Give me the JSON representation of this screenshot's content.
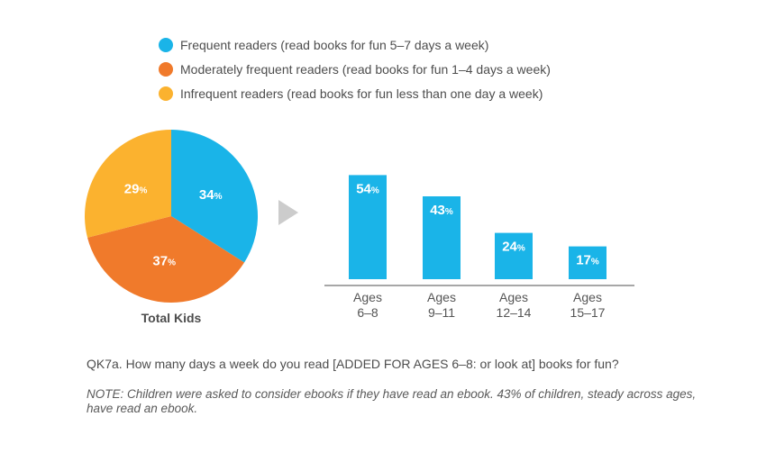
{
  "legend": [
    {
      "label": "Frequent readers (read books for fun 5–7 days a week)",
      "color": "#1ab4e8"
    },
    {
      "label": "Moderately frequent readers (read books for fun 1–4 days a week)",
      "color": "#f07a2b"
    },
    {
      "label": "Infrequent readers (read books for fun less than one day a week)",
      "color": "#fbb22f"
    }
  ],
  "chart_data": [
    {
      "type": "pie",
      "title": "Total Kids",
      "categories": [
        "Frequent readers",
        "Moderately frequent readers",
        "Infrequent readers"
      ],
      "values": [
        34,
        37,
        29
      ],
      "value_labels": [
        "34",
        "37",
        "29"
      ],
      "unit": "%",
      "colors": [
        "#1ab4e8",
        "#f07a2b",
        "#fbb22f"
      ]
    },
    {
      "type": "bar",
      "series_color": "#1ab4e8",
      "categories": [
        {
          "line1": "Ages",
          "line2": "6–8"
        },
        {
          "line1": "Ages",
          "line2": "9–11"
        },
        {
          "line1": "Ages",
          "line2": "12–14"
        },
        {
          "line1": "Ages",
          "line2": "15–17"
        }
      ],
      "values": [
        54,
        43,
        24,
        17
      ],
      "value_labels": [
        "54",
        "43",
        "24",
        "17"
      ],
      "unit": "%",
      "ylim": [
        0,
        100
      ]
    }
  ],
  "question": "QK7a. How many days a week do you read  [ADDED FOR AGES 6–8: or look at] books for fun?",
  "note": "NOTE: Children were asked to consider ebooks if they have read an ebook. 43% of children, steady across ages, have read an ebook."
}
